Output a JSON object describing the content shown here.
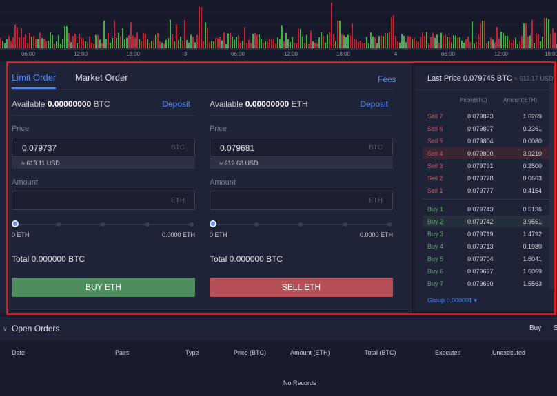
{
  "chart": {
    "time_labels": [
      "06:00",
      "12:00",
      "18:00",
      "3",
      "06:00",
      "12:00",
      "18:00",
      "4",
      "06:00",
      "12:00",
      "18:00"
    ],
    "up_color": "#3fb23f",
    "down_color": "#c62131"
  },
  "tabs": {
    "limit": "Limit Order",
    "market": "Market Order"
  },
  "fees": "Fees",
  "buy_form": {
    "available_label": "Available",
    "available_value": "0.00000000",
    "available_unit": "BTC",
    "deposit": "Deposit",
    "price_label": "Price",
    "price_value": "0.079737",
    "price_unit": "BTC",
    "usd_hint": "≈ 613.11 USD",
    "amount_label": "Amount",
    "amount_unit": "ETH",
    "range_min": "0 ETH",
    "range_max": "0.0000 ETH",
    "total": "Total 0.000000 BTC",
    "button": "BUY ETH"
  },
  "sell_form": {
    "available_label": "Available",
    "available_value": "0.00000000",
    "available_unit": "ETH",
    "deposit": "Deposit",
    "price_label": "Price",
    "price_value": "0.079681",
    "price_unit": "BTC",
    "usd_hint": "≈ 612.68 USD",
    "amount_label": "Amount",
    "amount_unit": "ETH",
    "range_min": "0 ETH",
    "range_max": "0.0000 ETH",
    "total": "Total 0.000000 BTC",
    "button": "SELL ETH"
  },
  "order_book": {
    "last_price": "Last Price 0.079745 BTC",
    "last_price_usd": "≈ 613.17 USD",
    "col_price": "Price(BTC)",
    "col_amount": "Amount(ETH)",
    "sells": [
      {
        "label": "Sell 7",
        "price": "0.079823",
        "amount": "1.6269"
      },
      {
        "label": "Sell 6",
        "price": "0.079807",
        "amount": "0.2361"
      },
      {
        "label": "Sell 5",
        "price": "0.079804",
        "amount": "0.0080"
      },
      {
        "label": "Sell 4",
        "price": "0.079800",
        "amount": "3.9210"
      },
      {
        "label": "Sell 3",
        "price": "0.079791",
        "amount": "0.2500"
      },
      {
        "label": "Sell 2",
        "price": "0.079778",
        "amount": "0.0663"
      },
      {
        "label": "Sell 1",
        "price": "0.079777",
        "amount": "0.4154"
      }
    ],
    "buys": [
      {
        "label": "Buy 1",
        "price": "0.079743",
        "amount": "0.5136"
      },
      {
        "label": "Buy 2",
        "price": "0.079742",
        "amount": "3.9561"
      },
      {
        "label": "Buy 3",
        "price": "0.079719",
        "amount": "1.4792"
      },
      {
        "label": "Buy 4",
        "price": "0.079713",
        "amount": "0.1980"
      },
      {
        "label": "Buy 5",
        "price": "0.079704",
        "amount": "1.6041"
      },
      {
        "label": "Buy 6",
        "price": "0.079697",
        "amount": "1.6069"
      },
      {
        "label": "Buy 7",
        "price": "0.079690",
        "amount": "1.5563"
      }
    ],
    "group": "Group 0.000001"
  },
  "open_orders": {
    "title": "Open Orders",
    "buy_tab": "Buy",
    "sell_tab": "S",
    "columns": [
      "Date",
      "Pairs",
      "Type",
      "Price (BTC)",
      "Amount (ETH)",
      "Total (BTC)",
      "Executed",
      "Unexecuted"
    ],
    "empty": "No Records"
  }
}
